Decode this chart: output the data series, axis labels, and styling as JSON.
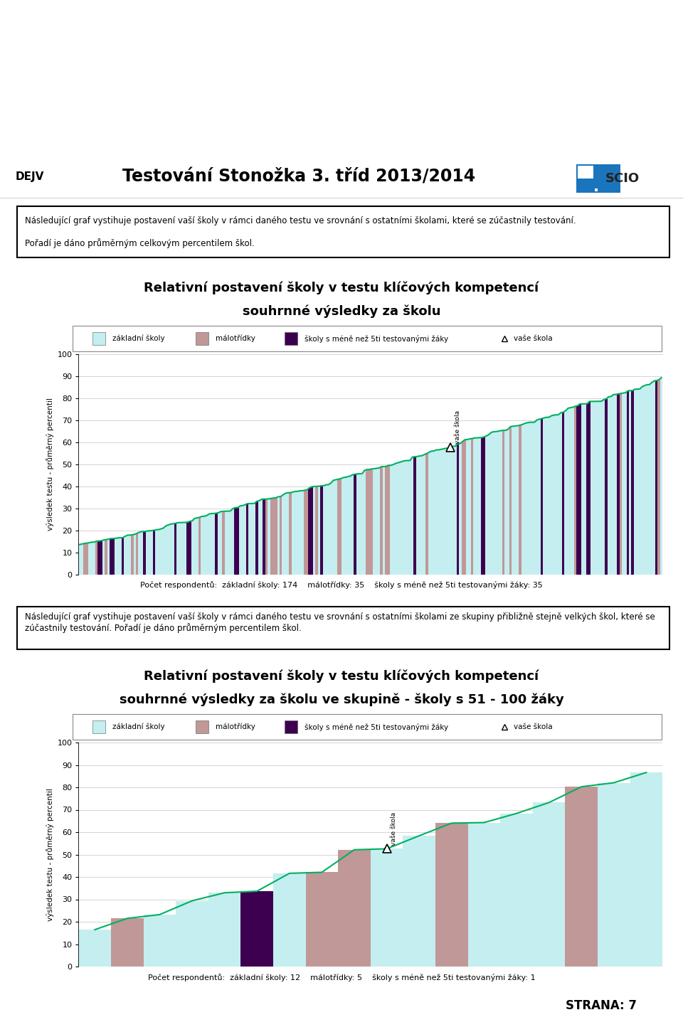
{
  "page_title": "Testování Stonožka 3. tříd 2013/2014",
  "page_subtitle": "DEJV",
  "info_text1": "Následující graf vystihuje postavení vaší školy v rámci daného testu ve srovnání s ostatními školami, které se zúčastnily testování.",
  "info_text2": "Pořadí je dáno průměrným celkovým percentilem škol.",
  "chart1_title1": "Relativní postavení školy v testu klíčových kompetencí",
  "chart1_title2": "souhrnné výsledky za školu",
  "chart2_title1": "Relativní postavení školy v testu klíčových kompetencí",
  "chart2_title2": "souhrnné výsledky za školu ve skupině - školy s 51 - 100 žáky",
  "ylabel": "výsledek testu - průměrný percentil",
  "legend_labels": [
    "základní školy",
    "málotřídky",
    "školy s méně než 5ti testovanými žáky",
    "vaše škola"
  ],
  "color_zakladni": "#c5eef0",
  "color_malotridky": "#c09898",
  "color_skoly": "#3d0050",
  "color_line": "#00b060",
  "footer_text1": "Počet respondentů:  základní školy: 174    málotřídky: 35    školy s méně než 5ti testovanými žáky: 35",
  "footer_text2": "Počet respondentů:  základní školy: 12    málotřídky: 5    školy s méně než 5ti testovanými žáky: 1",
  "page_number": "STRANA: 7",
  "vase_skola_index1": 155,
  "vase_skola_index2": 9,
  "chart1_n_bars": 244,
  "chart2_n_bars": 18,
  "info2_text": "Následující graf vystihuje postavení vaší školy v rámci daného testu ve srovnání s ostatními školami ze skupiny přibližně stejně velkých škol, které se zúčastnily testování. Pořadí je dáno průměrným percentilem škol.",
  "yticks": [
    0,
    10,
    20,
    30,
    40,
    50,
    60,
    70,
    80,
    90,
    100
  ],
  "n_malotridky1": 35,
  "n_skoly1": 35,
  "n_malotridky2": 5,
  "n_skoly2": 1
}
